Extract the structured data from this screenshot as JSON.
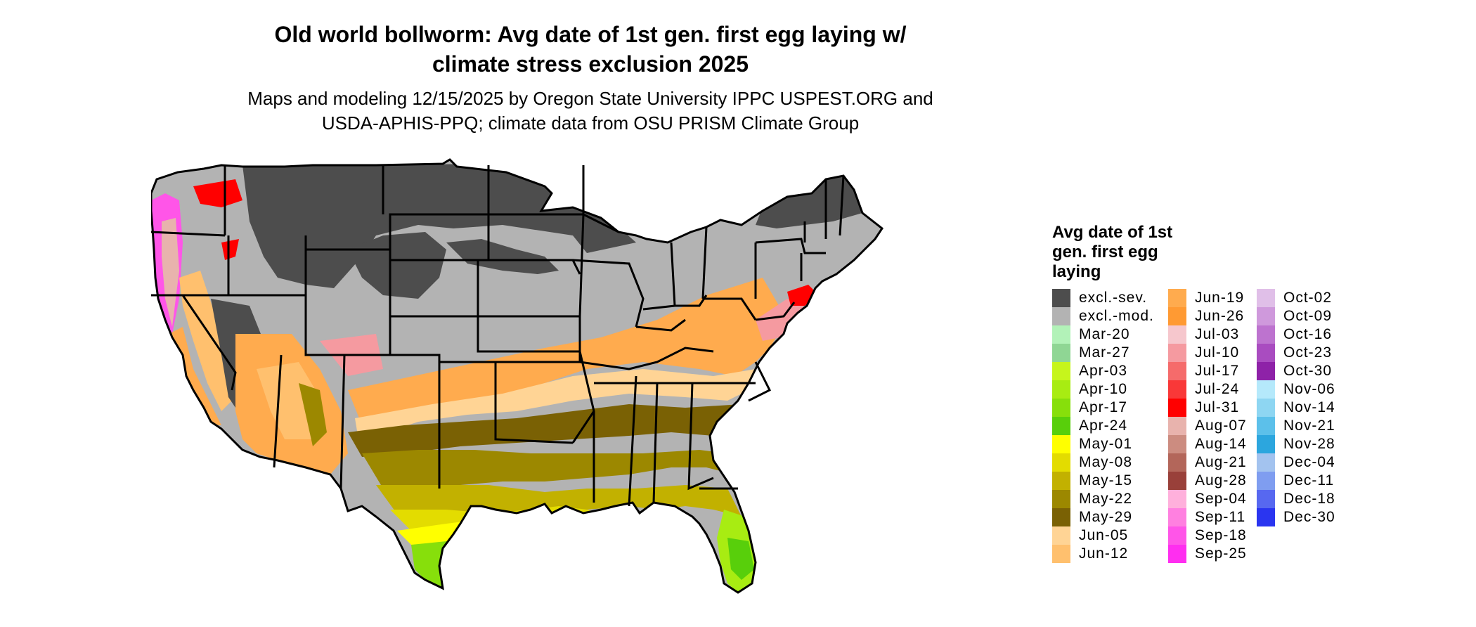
{
  "map": {
    "title_line1": "Old world bollworm: Avg date of 1st gen. first egg laying w/",
    "title_line2": "climate stress exclusion 2025",
    "subtitle_line1": "Maps and modeling 12/15/2025 by Oregon State University IPPC USPEST.ORG and",
    "subtitle_line2": "USDA-APHIS-PPQ; climate data from OSU PRISM Climate Group"
  },
  "legend": {
    "title_line1": "Avg date of 1st",
    "title_line2": "gen. first egg",
    "title_line3": "laying",
    "items": [
      {
        "label": "excl.-sev.",
        "color": "#4d4d4d"
      },
      {
        "label": "excl.-mod.",
        "color": "#b3b3b3"
      },
      {
        "label": "Mar-20",
        "color": "#b2f2b8"
      },
      {
        "label": "Mar-27",
        "color": "#8fd694"
      },
      {
        "label": "Apr-03",
        "color": "#c6f51c"
      },
      {
        "label": "Apr-10",
        "color": "#a8ec12"
      },
      {
        "label": "Apr-17",
        "color": "#87df0b"
      },
      {
        "label": "Apr-24",
        "color": "#58cf0b"
      },
      {
        "label": "May-01",
        "color": "#ffff00"
      },
      {
        "label": "May-08",
        "color": "#e3dc00"
      },
      {
        "label": "May-15",
        "color": "#c2b100"
      },
      {
        "label": "May-22",
        "color": "#9c8800"
      },
      {
        "label": "May-29",
        "color": "#7a6104"
      },
      {
        "label": "Jun-05",
        "color": "#ffd495"
      },
      {
        "label": "Jun-12",
        "color": "#ffc06e"
      },
      {
        "label": "Jun-19",
        "color": "#ffab4e"
      },
      {
        "label": "Jun-26",
        "color": "#ff9a33"
      },
      {
        "label": "Jul-03",
        "color": "#f6c7cd"
      },
      {
        "label": "Jul-10",
        "color": "#f59aa0"
      },
      {
        "label": "Jul-17",
        "color": "#f56b6b"
      },
      {
        "label": "Jul-24",
        "color": "#f93838"
      },
      {
        "label": "Jul-31",
        "color": "#ff0000"
      },
      {
        "label": "Aug-07",
        "color": "#e8b3ad"
      },
      {
        "label": "Aug-14",
        "color": "#cc8c80"
      },
      {
        "label": "Aug-21",
        "color": "#b3665a"
      },
      {
        "label": "Aug-28",
        "color": "#99403a"
      },
      {
        "label": "Sep-04",
        "color": "#ffb0dc"
      },
      {
        "label": "Sep-11",
        "color": "#ff80e0"
      },
      {
        "label": "Sep-18",
        "color": "#ff55e8"
      },
      {
        "label": "Sep-25",
        "color": "#ff2ef0"
      },
      {
        "label": "Oct-02",
        "color": "#e0bfe8"
      },
      {
        "label": "Oct-09",
        "color": "#cf99dc"
      },
      {
        "label": "Oct-16",
        "color": "#bd73cf"
      },
      {
        "label": "Oct-23",
        "color": "#a94cc0"
      },
      {
        "label": "Oct-30",
        "color": "#8e22a8"
      },
      {
        "label": "Nov-06",
        "color": "#b5e9fb"
      },
      {
        "label": "Nov-14",
        "color": "#8ed6f2"
      },
      {
        "label": "Nov-21",
        "color": "#5cc0ea"
      },
      {
        "label": "Nov-28",
        "color": "#2ca6de"
      },
      {
        "label": "Dec-04",
        "color": "#a3c3ef"
      },
      {
        "label": "Dec-11",
        "color": "#7f9df0"
      },
      {
        "label": "Dec-18",
        "color": "#5768f0"
      },
      {
        "label": "Dec-30",
        "color": "#2a35f0"
      }
    ]
  }
}
